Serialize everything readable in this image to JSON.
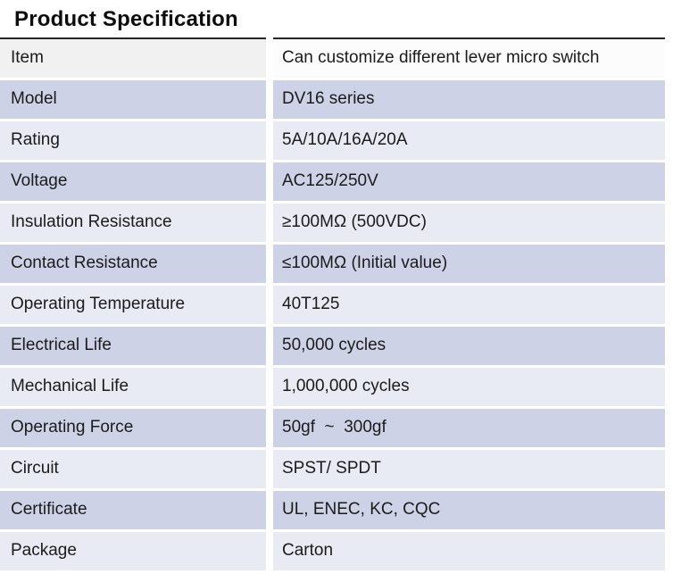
{
  "page": {
    "title": "Product Specification"
  },
  "colors": {
    "top_border": "#262626",
    "header_label_bg": "#f1f1f2",
    "header_value_bg": "#fcfcfc",
    "row_dark_bg": "#cdd2e7",
    "row_light_bg": "#e8eaf4",
    "text": "#1b1b1b"
  },
  "table": {
    "rows": [
      {
        "label": "Item",
        "value": "Can customize different lever micro switch"
      },
      {
        "label": "Model",
        "value": "DV16 series"
      },
      {
        "label": "Rating",
        "value": "5A/10A/16A/20A"
      },
      {
        "label": "Voltage",
        "value": "AC125/250V"
      },
      {
        "label": "Insulation Resistance",
        "value": "≥100MΩ (500VDC)"
      },
      {
        "label": "Contact Resistance",
        "value": "≤100MΩ (Initial value)"
      },
      {
        "label": "Operating Temperature",
        "value": "40T125"
      },
      {
        "label": "Electrical Life",
        "value": "50,000 cycles"
      },
      {
        "label": "Mechanical Life",
        "value": "1,000,000 cycles"
      },
      {
        "label": "Operating Force",
        "value": "50gf  ~  300gf"
      },
      {
        "label": "Circuit",
        "value": "SPST/ SPDT"
      },
      {
        "label": "Certificate",
        "value": "UL, ENEC, KC, CQC"
      },
      {
        "label": "Package",
        "value": "Carton"
      }
    ]
  }
}
